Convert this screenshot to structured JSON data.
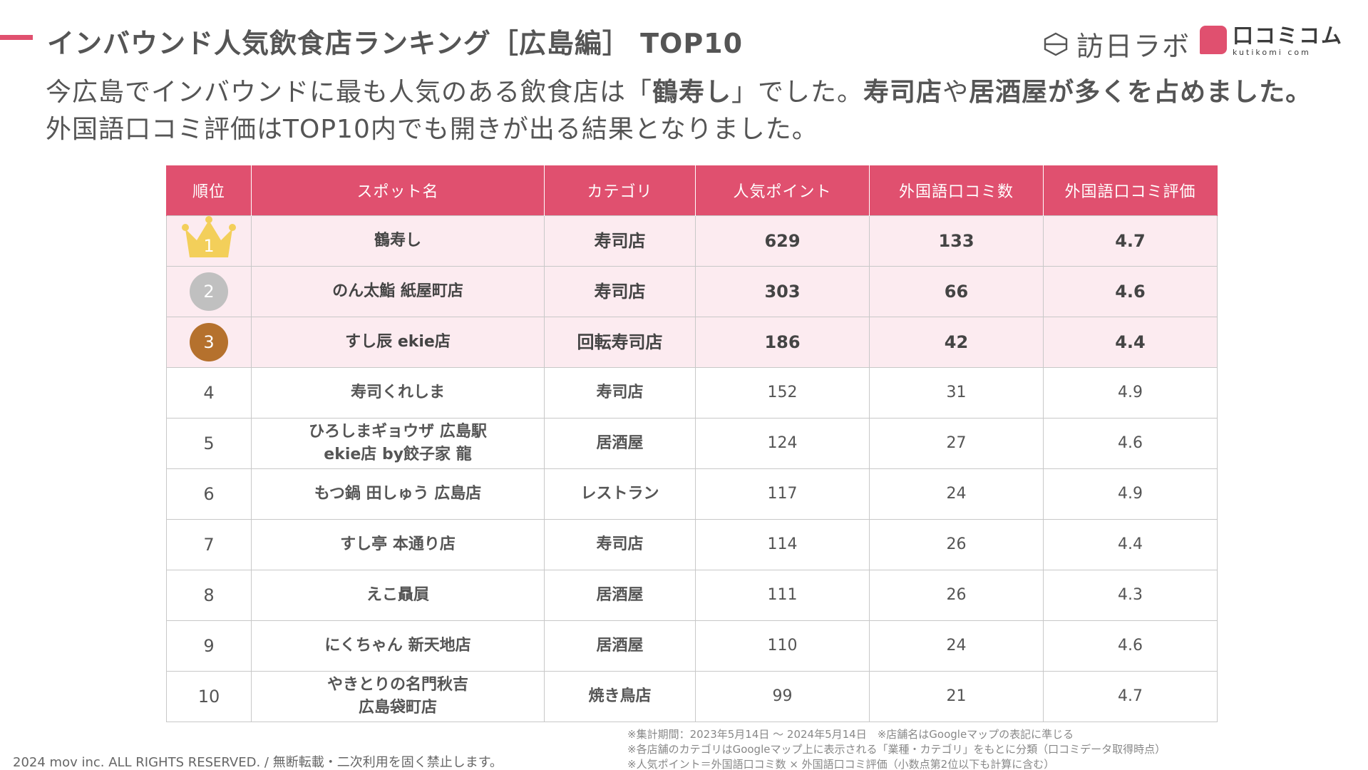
{
  "header": {
    "title": "インバウンド人気飲食店ランキング［広島編］ TOP10",
    "logo_houni": "訪日ラボ",
    "logo_kuchikomi": "口コミコム",
    "logo_kuchikomi_sub": "kutikomi com",
    "accent_color": "#e0506f"
  },
  "lead": {
    "line1_pre": "今広島でインバウンドに最も人気のある飲食店は「",
    "line1_bold1": "鶴寿し",
    "line1_mid": "」でした。",
    "line1_bold2": "寿司店",
    "line1_mid2": "や",
    "line1_bold3": "居酒屋が多くを占めました。",
    "line2": "外国語口コミ評価はTOP10内でも開きが出る結果となりました。"
  },
  "table": {
    "headers": [
      "順位",
      "スポット名",
      "カテゴリ",
      "人気ポイント",
      "外国語口コミ数",
      "外国語口コミ評価"
    ],
    "rows": [
      {
        "rank": "1",
        "name1": "鶴寿し",
        "name2": "",
        "category": "寿司店",
        "points": "629",
        "reviews": "133",
        "rating": "4.7"
      },
      {
        "rank": "2",
        "name1": "のん太鮨 紙屋町店",
        "name2": "",
        "category": "寿司店",
        "points": "303",
        "reviews": "66",
        "rating": "4.6"
      },
      {
        "rank": "3",
        "name1": "すし辰 ekie店",
        "name2": "",
        "category": "回転寿司店",
        "points": "186",
        "reviews": "42",
        "rating": "4.4"
      },
      {
        "rank": "4",
        "name1": "寿司くれしま",
        "name2": "",
        "category": "寿司店",
        "points": "152",
        "reviews": "31",
        "rating": "4.9"
      },
      {
        "rank": "5",
        "name1": "ひろしまギョウザ 広島駅",
        "name2": "ekie店 by餃子家 龍",
        "category": "居酒屋",
        "points": "124",
        "reviews": "27",
        "rating": "4.6"
      },
      {
        "rank": "6",
        "name1": "もつ鍋 田しゅう 広島店",
        "name2": "",
        "category": "レストラン",
        "points": "117",
        "reviews": "24",
        "rating": "4.9"
      },
      {
        "rank": "7",
        "name1": "すし亭 本通り店",
        "name2": "",
        "category": "寿司店",
        "points": "114",
        "reviews": "26",
        "rating": "4.4"
      },
      {
        "rank": "8",
        "name1": "えこ贔屓",
        "name2": "",
        "category": "居酒屋",
        "points": "111",
        "reviews": "26",
        "rating": "4.3"
      },
      {
        "rank": "9",
        "name1": "にくちゃん 新天地店",
        "name2": "",
        "category": "居酒屋",
        "points": "110",
        "reviews": "24",
        "rating": "4.6"
      },
      {
        "rank": "10",
        "name1": "やきとりの名門秋吉",
        "name2": "広島袋町店",
        "category": "焼き鳥店",
        "points": "99",
        "reviews": "21",
        "rating": "4.7"
      }
    ]
  },
  "footer": {
    "copyright": "2024 mov inc. ALL RIGHTS RESERVED. / 無断転載・二次利用を固く禁止します。",
    "note1": "※集計期間：2023年5月14日 〜 2024年5月14日　※店舗名はGoogleマップの表記に準じる",
    "note2": "※各店舗のカテゴリはGoogleマップ上に表示される「業種・カテゴリ」をもとに分類（口コミデータ取得時点）",
    "note3": "※人気ポイント＝外国語口コミ数 × 外国語口コミ評価（小数点第2位以下も計算に含む）"
  }
}
